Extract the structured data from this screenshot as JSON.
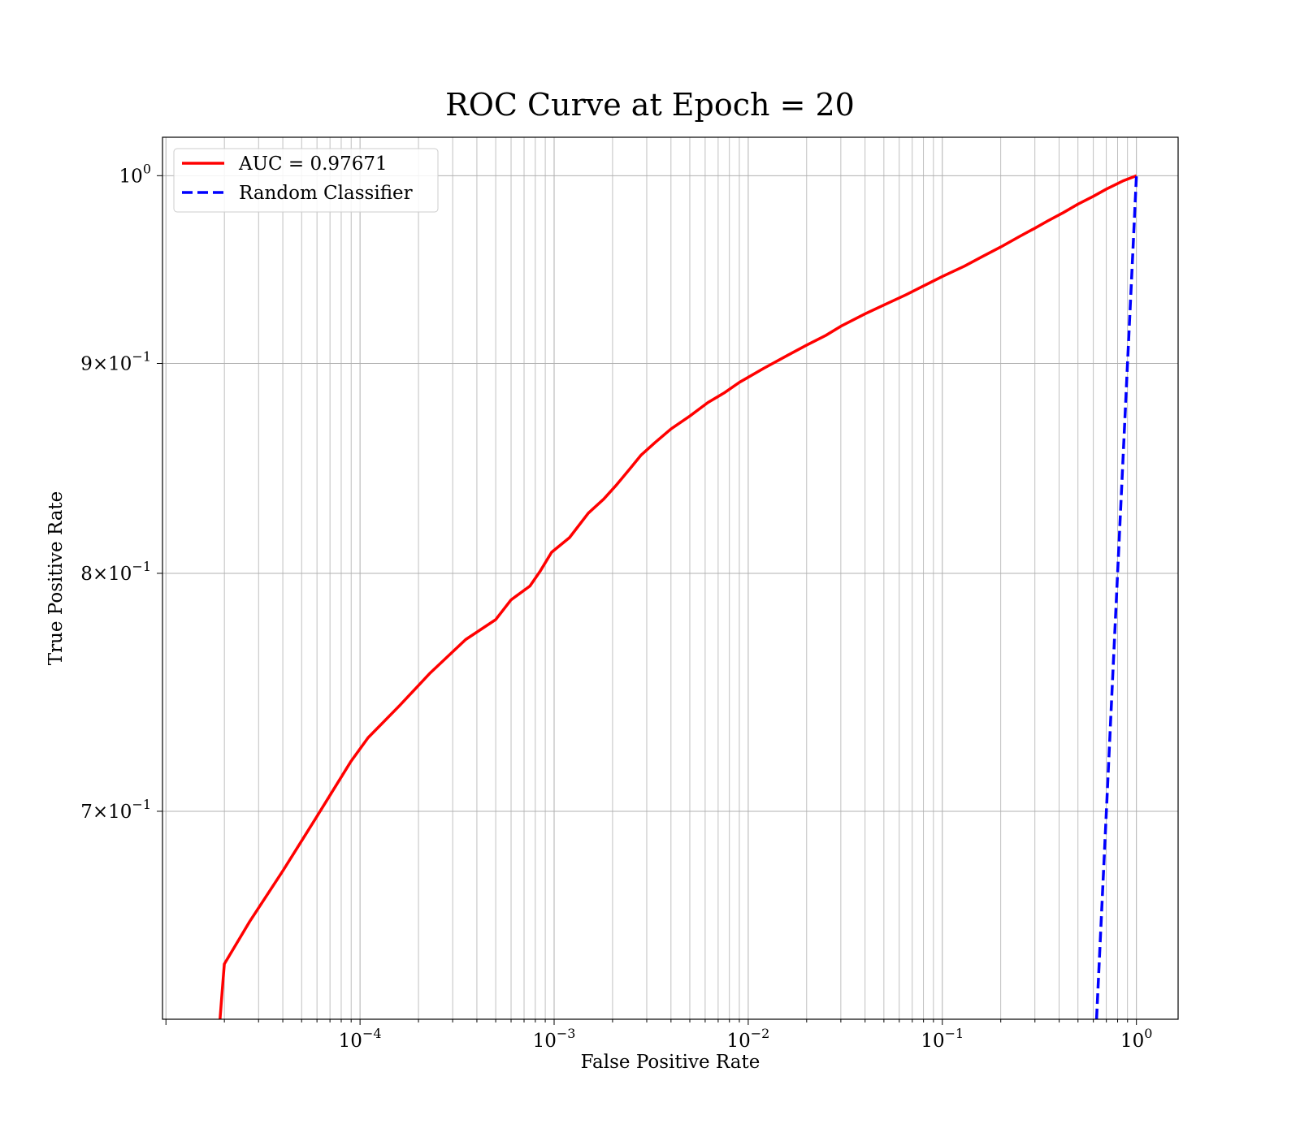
{
  "chart_data": {
    "type": "line",
    "title": "ROC Curve at Epoch = 20",
    "xlabel": "False Positive Rate",
    "ylabel": "True Positive Rate",
    "xscale": "log",
    "yscale": "log",
    "xlim": [
      9.6e-06,
      1.64
    ],
    "ylim": [
      0.6229,
      1.0218
    ],
    "grid": "on (major and minor, both axes)",
    "legend_position": "top-left",
    "x_ticks": [
      {
        "base": "10",
        "exp": "−4",
        "value": 0.0001
      },
      {
        "base": "10",
        "exp": "−3",
        "value": 0.001
      },
      {
        "base": "10",
        "exp": "−2",
        "value": 0.01
      },
      {
        "base": "10",
        "exp": "−1",
        "value": 0.1
      },
      {
        "base": "10",
        "exp": "0",
        "value": 1
      }
    ],
    "y_ticks": [
      {
        "base": "10",
        "exp": "0",
        "value": 1.0
      },
      {
        "base": "9×10",
        "exp": "−1",
        "value": 0.9
      },
      {
        "base": "8×10",
        "exp": "−1",
        "value": 0.8
      },
      {
        "base": "7×10",
        "exp": "−1",
        "value": 0.7
      }
    ],
    "series": [
      {
        "name": "AUC = 0.97671",
        "color": "#ff0000",
        "style": "solid",
        "x": [
          1.9e-05,
          1.95e-05,
          2e-05,
          2.7e-05,
          4e-05,
          6e-05,
          9e-05,
          0.00011,
          0.00016,
          0.00023,
          0.00035,
          0.0005,
          0.0006,
          0.00075,
          0.00085,
          0.00097,
          0.0012,
          0.0015,
          0.0018,
          0.0021,
          0.0025,
          0.0028,
          0.0033,
          0.004,
          0.005,
          0.0062,
          0.0075,
          0.009,
          0.012,
          0.016,
          0.02,
          0.025,
          0.03,
          0.04,
          0.05,
          0.065,
          0.08,
          0.1,
          0.13,
          0.16,
          0.2,
          0.25,
          0.3,
          0.35,
          0.42,
          0.5,
          0.6,
          0.7,
          0.85,
          1.0
        ],
        "y": [
          0.6229,
          0.633,
          0.6425,
          0.658,
          0.677,
          0.698,
          0.72,
          0.7295,
          0.7428,
          0.7565,
          0.7708,
          0.7795,
          0.7882,
          0.7943,
          0.8012,
          0.8095,
          0.8162,
          0.8275,
          0.834,
          0.8408,
          0.8492,
          0.8548,
          0.8608,
          0.8675,
          0.8738,
          0.8805,
          0.8852,
          0.8905,
          0.8975,
          0.9042,
          0.9093,
          0.9142,
          0.919,
          0.9254,
          0.93,
          0.9354,
          0.94,
          0.945,
          0.9505,
          0.9555,
          0.9608,
          0.9665,
          0.971,
          0.975,
          0.9795,
          0.9842,
          0.9885,
          0.9925,
          0.997,
          1.0
        ]
      },
      {
        "name": "Random Classifier",
        "color": "#0000ff",
        "style": "dashed",
        "x": [
          0.6229,
          0.65,
          0.7,
          0.75,
          0.8,
          0.85,
          0.9,
          0.95,
          1.0
        ],
        "y": [
          0.6229,
          0.65,
          0.7,
          0.75,
          0.8,
          0.85,
          0.9,
          0.95,
          1.0
        ]
      }
    ]
  }
}
